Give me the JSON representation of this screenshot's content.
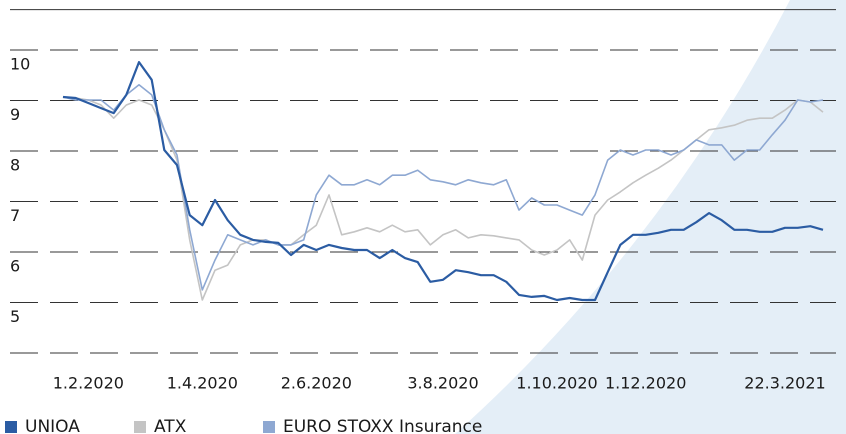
{
  "chart_data": {
    "type": "line",
    "x": [
      0,
      1,
      2,
      3,
      4,
      5,
      6,
      7,
      8,
      9,
      10,
      11,
      12,
      13,
      14,
      15,
      16,
      17,
      18,
      19,
      20,
      21,
      22,
      23,
      24,
      25,
      26,
      27,
      28,
      29,
      30,
      31,
      32,
      33,
      34,
      35,
      36,
      37,
      38,
      39,
      40,
      41,
      42,
      43,
      44,
      45,
      46,
      47,
      48,
      49,
      50,
      51,
      52,
      53,
      54,
      55,
      56,
      57,
      58,
      59,
      60
    ],
    "xlim": [
      0,
      60
    ],
    "xticks": [
      {
        "value": 2,
        "label": "1.2.2020"
      },
      {
        "value": 11,
        "label": "1.4.2020"
      },
      {
        "value": 20,
        "label": "2.6.2020"
      },
      {
        "value": 30,
        "label": "3.8.2020"
      },
      {
        "value": 39,
        "label": "1.10.2020"
      },
      {
        "value": 46,
        "label": "1.12.2020"
      },
      {
        "value": 57,
        "label": "22.3.2021"
      }
    ],
    "ylim": [
      4,
      10.8
    ],
    "yticks": [
      5,
      6,
      7,
      8,
      9,
      10
    ],
    "grid": true,
    "series": [
      {
        "name": "UNIOA",
        "color": "#2b5ca3",
        "values": [
          9.07,
          9.05,
          8.95,
          8.85,
          8.75,
          9.11,
          9.76,
          9.41,
          8.02,
          7.72,
          6.73,
          6.53,
          7.03,
          6.63,
          6.34,
          6.24,
          6.2,
          6.18,
          5.94,
          6.14,
          6.04,
          6.14,
          6.08,
          6.04,
          6.04,
          5.88,
          6.04,
          5.88,
          5.8,
          5.41,
          5.45,
          5.64,
          5.6,
          5.54,
          5.54,
          5.41,
          5.15,
          5.11,
          5.13,
          5.05,
          5.09,
          5.05,
          5.05,
          5.6,
          6.14,
          6.34,
          6.34,
          6.38,
          6.44,
          6.44,
          6.59,
          6.77,
          6.63,
          6.44,
          6.44,
          6.4,
          6.4,
          6.48,
          6.48,
          6.51,
          6.44
        ]
      },
      {
        "name": "ATX",
        "color": "#c4c4c4",
        "values": [
          9.07,
          9.05,
          9.01,
          8.91,
          8.65,
          8.91,
          9.01,
          8.91,
          8.42,
          7.82,
          6.24,
          5.05,
          5.64,
          5.74,
          6.14,
          6.24,
          6.24,
          6.14,
          6.14,
          6.34,
          6.53,
          7.13,
          6.34,
          6.4,
          6.48,
          6.4,
          6.53,
          6.4,
          6.44,
          6.14,
          6.34,
          6.44,
          6.28,
          6.34,
          6.32,
          6.28,
          6.24,
          6.04,
          5.94,
          6.04,
          6.24,
          5.84,
          6.73,
          7.03,
          7.19,
          7.37,
          7.52,
          7.66,
          7.82,
          8.02,
          8.22,
          8.42,
          8.46,
          8.51,
          8.61,
          8.65,
          8.65,
          8.81,
          9.01,
          8.97,
          8.77
        ]
      },
      {
        "name": "EURO STOXX Insurance",
        "color": "#8ea8d2",
        "values": [
          9.07,
          9.01,
          9.01,
          9.01,
          8.81,
          9.11,
          9.31,
          9.11,
          8.42,
          7.92,
          6.44,
          5.25,
          5.84,
          6.34,
          6.24,
          6.14,
          6.24,
          6.14,
          6.14,
          6.24,
          7.13,
          7.52,
          7.33,
          7.33,
          7.43,
          7.33,
          7.52,
          7.52,
          7.62,
          7.43,
          7.39,
          7.33,
          7.43,
          7.37,
          7.33,
          7.43,
          6.83,
          7.07,
          6.93,
          6.93,
          6.83,
          6.73,
          7.13,
          7.82,
          8.02,
          7.92,
          8.02,
          8.02,
          7.92,
          8.02,
          8.22,
          8.12,
          8.12,
          7.82,
          8.02,
          8.02,
          8.32,
          8.61,
          9.01,
          8.97,
          9.01
        ]
      }
    ]
  }
}
